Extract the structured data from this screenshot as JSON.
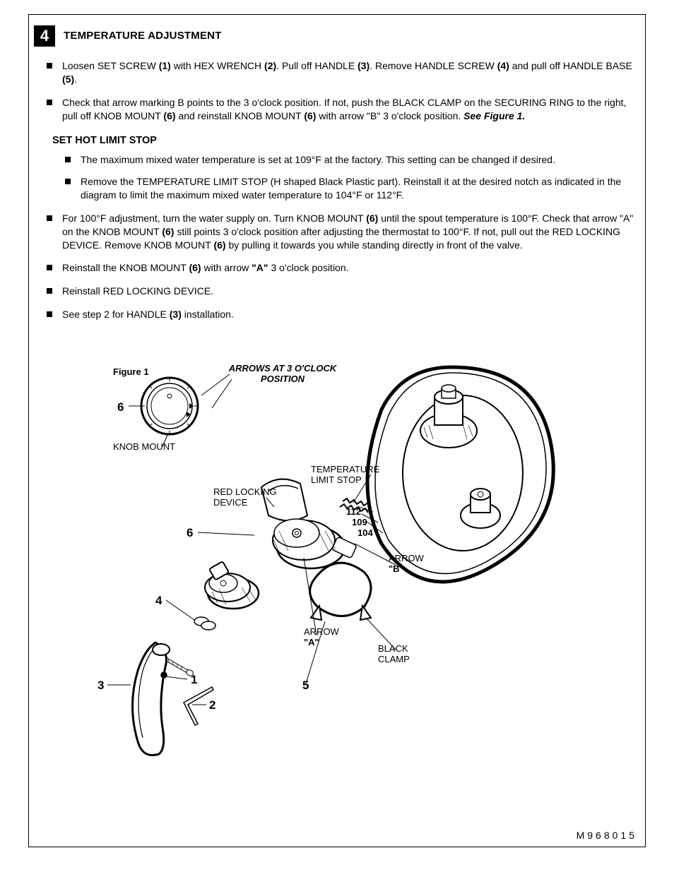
{
  "step": {
    "number": "4",
    "title": "TEMPERATURE ADJUSTMENT"
  },
  "bullets_top": [
    {
      "parts": [
        {
          "t": "Loosen SET SCREW "
        },
        {
          "t": "(1)",
          "b": true
        },
        {
          "t": " with HEX WRENCH "
        },
        {
          "t": "(2)",
          "b": true
        },
        {
          "t": ". Pull off HANDLE "
        },
        {
          "t": "(3)",
          "b": true
        },
        {
          "t": ". Remove HANDLE SCREW "
        },
        {
          "t": "(4)",
          "b": true
        },
        {
          "t": " and pull off HANDLE BASE "
        },
        {
          "t": "(5)",
          "b": true
        },
        {
          "t": "."
        }
      ]
    },
    {
      "parts": [
        {
          "t": "Check that arrow marking B points to the 3 o'clock position. If not, push the BLACK CLAMP on the SECURING RING to the right, pull off KNOB MOUNT "
        },
        {
          "t": "(6)",
          "b": true
        },
        {
          "t": " and reinstall KNOB MOUNT "
        },
        {
          "t": "(6)",
          "b": true
        },
        {
          "t": " with arrow \"B\" 3 o'clock position. "
        },
        {
          "t": "See Figure 1.",
          "b": true,
          "i": true
        }
      ]
    }
  ],
  "sub_heading": "SET HOT LIMIT STOP",
  "bullets_sub": [
    {
      "parts": [
        {
          "t": "The maximum mixed water temperature is set at 109°F at the factory. This setting can be changed if desired."
        }
      ]
    },
    {
      "parts": [
        {
          "t": "Remove the TEMPERATURE LIMIT STOP (H shaped Black Plastic part). Reinstall it at the desired notch as indicated in the diagram to limit the maximum mixed water temperature to 104°F or 112°F."
        }
      ]
    }
  ],
  "bullets_after": [
    {
      "parts": [
        {
          "t": "For 100°F adjustment, turn the water supply on. Turn KNOB MOUNT "
        },
        {
          "t": "(6)",
          "b": true
        },
        {
          "t": " until the spout temperature is 100°F. Check that arrow \"A\" on the KNOB MOUNT "
        },
        {
          "t": "(6)",
          "b": true
        },
        {
          "t": " still points 3 o'clock position after adjusting the thermostat to 100°F. If not, pull out the RED LOCKING DEVICE. Remove KNOB MOUNT "
        },
        {
          "t": "(6)",
          "b": true
        },
        {
          "t": " by pulling it towards you while standing directly in front of the valve."
        }
      ]
    },
    {
      "parts": [
        {
          "t": "Reinstall the KNOB MOUNT "
        },
        {
          "t": "(6)",
          "b": true
        },
        {
          "t": " with arrow "
        },
        {
          "t": "\"A\"",
          "b": true
        },
        {
          "t": " 3 o'clock position."
        }
      ]
    },
    {
      "parts": [
        {
          "t": "Reinstall RED LOCKING DEVICE."
        }
      ]
    },
    {
      "parts": [
        {
          "t": "See step 2 for HANDLE "
        },
        {
          "t": "(3)",
          "b": true
        },
        {
          "t": " installation."
        }
      ]
    }
  ],
  "figure": {
    "title": "Figure 1",
    "arrows_note_l1": "ARROWS AT 3 O'CLOCK",
    "arrows_note_l2": "POSITION",
    "labels": {
      "knob_mount": "KNOB MOUNT",
      "temp_limit_l1": "TEMPERATURE",
      "temp_limit_l2": "LIMIT STOP",
      "red_lock_l1": "RED LOCKING",
      "red_lock_l2": "DEVICE",
      "t112": "112",
      "t109": "109",
      "t104": "104",
      "arrow": "ARROW",
      "arrow_b": "\"B\"",
      "arrow_a": "\"A\"",
      "black_l1": "BLACK",
      "black_l2": "CLAMP"
    },
    "callouts": {
      "c1": "1",
      "c2": "2",
      "c3": "3",
      "c4": "4",
      "c5": "5",
      "c6a": "6",
      "c6b": "6"
    }
  },
  "doc_number": "M968015"
}
